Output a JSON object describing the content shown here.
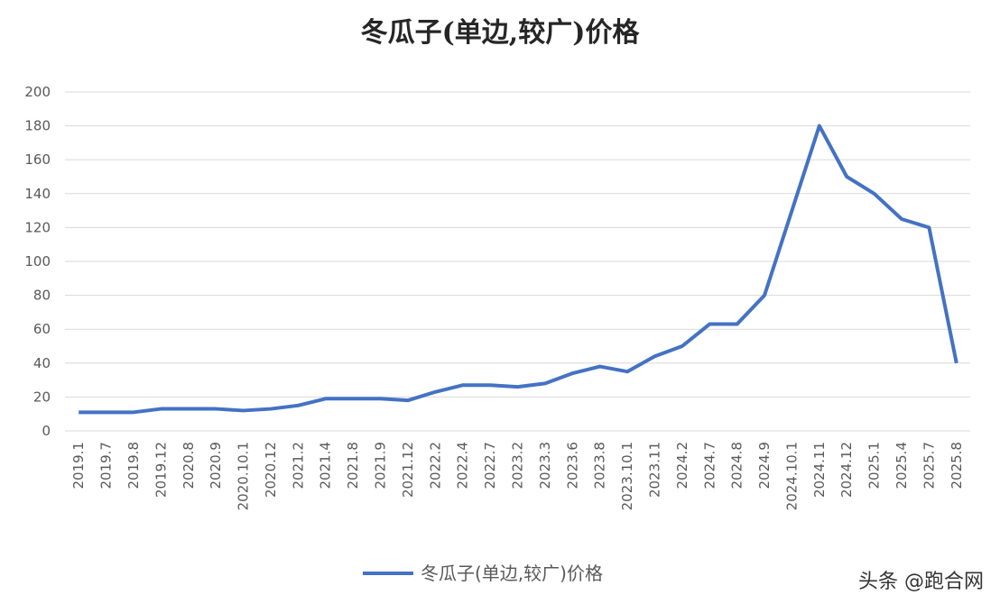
{
  "chart_data": {
    "type": "line",
    "title": "冬瓜子(单边,较广)价格",
    "categories": [
      "2019.1",
      "2019.7",
      "2019.8",
      "2019.12",
      "2020.8",
      "2020.9",
      "2020.10.1",
      "2020.12",
      "2021.2",
      "2021.4",
      "2021.8",
      "2021.9",
      "2021.12",
      "2022.2",
      "2022.4",
      "2022.7",
      "2023.2",
      "2023.3",
      "2023.6",
      "2023.8",
      "2023.10.1",
      "2023.11",
      "2024.2",
      "2024.7",
      "2024.8",
      "2024.9",
      "2024.10.1",
      "2024.11",
      "2024.12",
      "2025.1",
      "2025.4",
      "2025.7",
      "2025.8"
    ],
    "series": [
      {
        "name": "冬瓜子(单边,较广)价格",
        "color": "#4472c4",
        "values": [
          11,
          11,
          11,
          13,
          13,
          13,
          12,
          13,
          15,
          19,
          19,
          19,
          18,
          23,
          27,
          27,
          26,
          28,
          34,
          38,
          35,
          44,
          50,
          63,
          63,
          80,
          130,
          180,
          150,
          140,
          125,
          120,
          40
        ]
      }
    ],
    "ylim": [
      0,
      200
    ],
    "yticks": [
      0,
      20,
      40,
      60,
      80,
      100,
      120,
      140,
      160,
      180,
      200
    ],
    "grid": true,
    "legend": "bottom"
  },
  "watermark": "头条 @跑合网"
}
